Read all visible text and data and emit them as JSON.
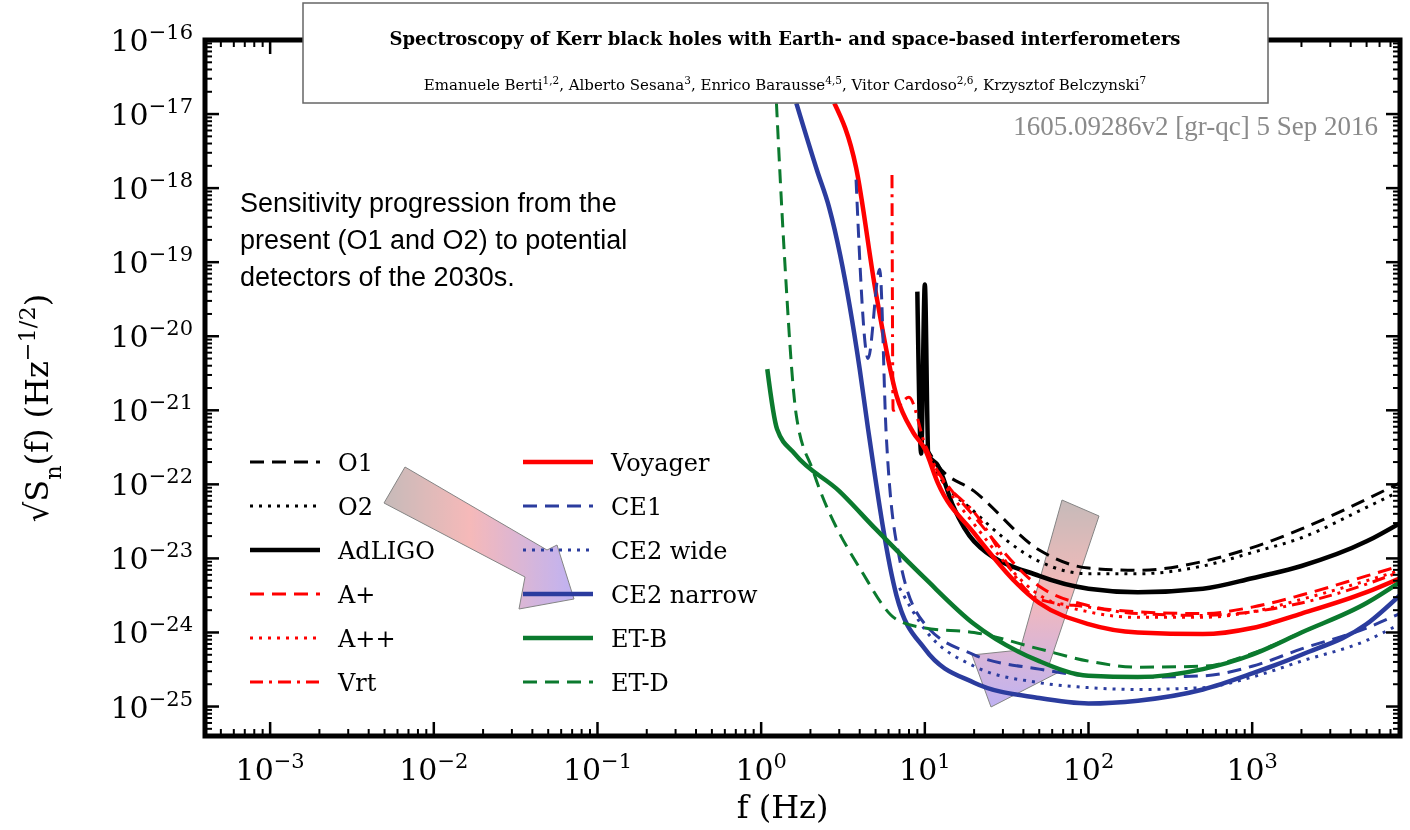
{
  "chart_data": {
    "type": "line",
    "title": "Spectroscopy of Kerr black holes with Earth- and space-based interferometers",
    "subtitle": "Emanuele Berti$^{1,2}$, Alberto Sesana$^{3}$, Enrico Barausse$^{4,5}$, Vitor Cardoso$^{2,6}$, Krzysztof Belczynski$^{7}$",
    "xlabel": "f (Hz)",
    "ylabel": "√S$_{n}$(f) (Hz$^{−1/2}$)",
    "annotations": [
      "Sensitivity progression from the present (O1 and O2) to potential detectors of the 2030s.",
      "1605.09286v2  [gr-qc]  5 Sep 2016"
    ],
    "log": "xy",
    "legend": "bottom left",
    "xlim": [
      0.0004,
      8000
    ],
    "ylim": [
      4e-26,
      1e-16
    ],
    "xticks": [
      {
        "value": 0.001,
        "label": "10$^{−3}$"
      },
      {
        "value": 0.01,
        "label": "10$^{−2}$"
      },
      {
        "value": 0.1,
        "label": "10$^{−1}$"
      },
      {
        "value": 1,
        "label": "10$^{0}$"
      },
      {
        "value": 10,
        "label": "10$^{1}$"
      },
      {
        "value": 100,
        "label": "10$^{2}$"
      },
      {
        "value": 1000,
        "label": "10$^{3}$"
      }
    ],
    "yticks": [
      {
        "value": 1e-25,
        "label": "10$^{−25}$"
      },
      {
        "value": 1e-24,
        "label": "10$^{−24}$"
      },
      {
        "value": 1e-23,
        "label": "10$^{−23}$"
      },
      {
        "value": 1e-22,
        "label": "10$^{−22}$"
      },
      {
        "value": 1e-21,
        "label": "10$^{−21}$"
      },
      {
        "value": 1e-20,
        "label": "10$^{−20}$"
      },
      {
        "value": 1e-19,
        "label": "10$^{−19}$"
      },
      {
        "value": 1e-18,
        "label": "10$^{−18}$"
      },
      {
        "value": 1e-17,
        "label": "10$^{−17}$"
      },
      {
        "value": 1e-16,
        "label": "10$^{−16}$"
      }
    ],
    "series": [
      {
        "name": "O1",
        "color": "#000000",
        "line_style": "dashed",
        "x": [
          10,
          12,
          20,
          50,
          100,
          200,
          500,
          1000,
          2000,
          5000,
          8000
        ],
        "values": [
          3.4e-22,
          1.8e-22,
          8.1e-23,
          1.3e-23,
          7.4e-24,
          6.9e-24,
          9.1e-24,
          1.4e-23,
          2.5e-23,
          6.3e-23,
          1.05e-22
        ]
      },
      {
        "name": "O2",
        "color": "#000000",
        "line_style": "dotted",
        "x": [
          10,
          12,
          20,
          50,
          100,
          200,
          500,
          1000,
          2000,
          5000,
          8000
        ],
        "values": [
          3.2e-22,
          1.4e-22,
          4.3e-23,
          9.1e-24,
          6.2e-24,
          6.2e-24,
          7.9e-24,
          1.2e-23,
          1.9e-23,
          4.9e-23,
          8.1e-23
        ]
      },
      {
        "name": "AdLIGO",
        "color": "#000000",
        "line_style": "solid",
        "x": [
          9,
          9.5,
          10,
          10.5,
          12,
          15,
          20,
          50,
          100,
          200,
          500,
          1000,
          2000,
          5000,
          8000
        ],
        "values": [
          4e-20,
          2.6e-22,
          5e-20,
          2.5e-22,
          1.8e-22,
          4.9e-23,
          1.7e-23,
          5.8e-24,
          3.9e-24,
          3.5e-24,
          3.9e-24,
          5.4e-24,
          7.9e-24,
          1.7e-23,
          3e-23
        ]
      },
      {
        "name": "A+",
        "color": "#ff0000",
        "line_style": "dashed",
        "x": [
          10,
          12,
          20,
          50,
          100,
          200,
          500,
          1000,
          2000,
          5000,
          8000
        ],
        "values": [
          3e-22,
          1.5e-22,
          3.7e-23,
          4.2e-24,
          2.3e-24,
          1.9e-24,
          1.8e-24,
          2.2e-24,
          3.2e-24,
          5.8e-24,
          7.9e-24
        ]
      },
      {
        "name": "A++",
        "color": "#ff0000",
        "line_style": "dotted",
        "x": [
          10,
          12,
          20,
          50,
          100,
          200,
          500,
          1000,
          2000,
          5000,
          8000
        ],
        "values": [
          3e-22,
          1.4e-22,
          2.9e-23,
          3.2e-24,
          1.9e-24,
          1.6e-24,
          1.6e-24,
          1.9e-24,
          2.8e-24,
          5e-24,
          6.9e-24
        ]
      },
      {
        "name": "Vrt",
        "color": "#ff0000",
        "line_style": "dashdot",
        "x": [
          6.3,
          6.4,
          8,
          10,
          12,
          20,
          50,
          100,
          200,
          500,
          1000,
          2000,
          5000,
          8000
        ],
        "values": [
          1.5e-18,
          1e-21,
          1.5e-21,
          3.5e-22,
          1.5e-22,
          4.2e-23,
          2.8e-24,
          2.2e-24,
          1.8e-24,
          1.7e-24,
          1.9e-24,
          2.5e-24,
          4.5e-24,
          6.6e-24
        ]
      },
      {
        "name": "Voyager",
        "color": "#ff0000",
        "line_style": "solid",
        "x": [
          2.8,
          3.8,
          5,
          6.7,
          8.5,
          10,
          12,
          20,
          50,
          100,
          200,
          500,
          1000,
          2000,
          5000,
          8000
        ],
        "values": [
          1.4e-17,
          1.9e-18,
          4.1e-20,
          1.6e-21,
          5e-22,
          3e-22,
          1.05e-22,
          2.2e-23,
          2.5e-24,
          1.3e-24,
          1e-24,
          9.5e-25,
          1.15e-24,
          1.8e-24,
          3.5e-24,
          5.4e-24
        ]
      },
      {
        "name": "CE1",
        "color": "#2b3c9e",
        "line_style": "dashed",
        "x": [
          3.8,
          4.5,
          5.3,
          5.8,
          7,
          10,
          20,
          50,
          100,
          200,
          500,
          1000,
          2000,
          5000,
          8000
        ],
        "values": [
          1.3e-18,
          5e-21,
          8e-20,
          5e-22,
          1e-23,
          1.3e-24,
          5e-25,
          3.2e-25,
          2.6e-25,
          2.5e-25,
          2.6e-25,
          3.5e-25,
          6e-25,
          1.15e-24,
          1.8e-24
        ]
      },
      {
        "name": "CE2 wide",
        "color": "#2b3c9e",
        "line_style": "dotted",
        "x": [
          7,
          10,
          20,
          50,
          100,
          200,
          500,
          1000,
          2000,
          5000,
          8000
        ],
        "values": [
          4e-24,
          1.1e-24,
          3.5e-25,
          2.1e-25,
          1.8e-25,
          1.7e-25,
          1.8e-25,
          2.5e-25,
          4.1e-25,
          7.8e-25,
          1.3e-24
        ]
      },
      {
        "name": "CE2 narrow",
        "color": "#2b3c9e",
        "line_style": "solid",
        "x": [
          1.64,
          2.2,
          2.6,
          4.0,
          4.5,
          6.7,
          10,
          20,
          50,
          100,
          200,
          500,
          1000,
          2000,
          5000,
          8000
        ],
        "values": [
          1.4e-17,
          1.7e-18,
          5.5e-19,
          3.6e-21,
          5.6e-22,
          3.2e-24,
          6e-25,
          2.1e-25,
          1.3e-25,
          1.1e-25,
          1.2e-25,
          1.7e-25,
          2.8e-25,
          5e-25,
          1.3e-24,
          3.2e-24
        ]
      },
      {
        "name": "ET-B",
        "color": "#0b7a2e",
        "line_style": "solid",
        "x": [
          1.09,
          1.25,
          1.6,
          3,
          5,
          10,
          20,
          50,
          100,
          200,
          500,
          1000,
          2000,
          5000,
          8000
        ],
        "values": [
          3.6e-21,
          5.6e-22,
          2.6e-22,
          8.1e-23,
          2.5e-23,
          5.4e-24,
          1.3e-24,
          4.1e-25,
          2.6e-25,
          2.5e-25,
          3.2e-25,
          5e-25,
          1e-24,
          2.5e-24,
          4.8e-24
        ]
      },
      {
        "name": "ET-D",
        "color": "#0b7a2e",
        "line_style": "dashed",
        "x": [
          1.24,
          1.38,
          1.64,
          2.08,
          4.2,
          6.7,
          10,
          20,
          50,
          100,
          200,
          500,
          1000,
          2000,
          5000,
          8000
        ],
        "values": [
          1.4e-17,
          1.5e-19,
          8.5e-22,
          1.5e-22,
          6.2e-24,
          1.5e-24,
          1.15e-24,
          1e-24,
          6e-25,
          4.1e-25,
          3.4e-25,
          3.5e-25,
          5.2e-25,
          1e-24,
          2.5e-24,
          4.8e-24
        ]
      }
    ]
  }
}
